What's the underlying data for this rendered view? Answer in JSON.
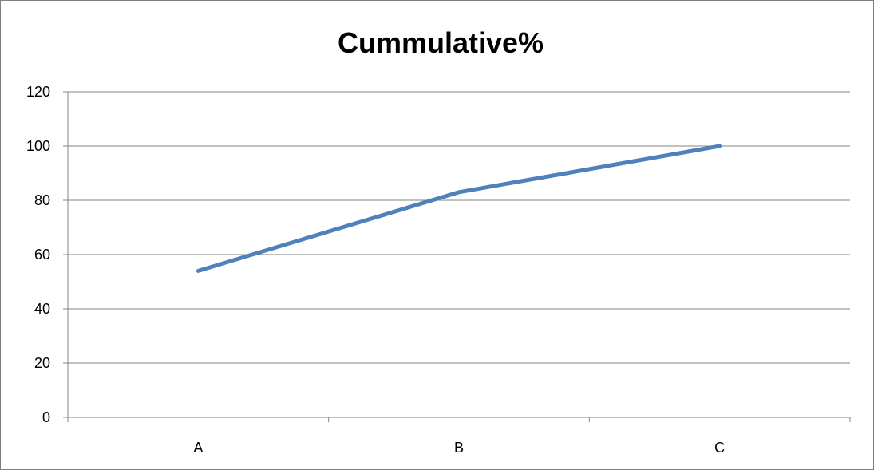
{
  "chart_data": {
    "type": "line",
    "title": "Cummulative%",
    "xlabel": "",
    "ylabel": "",
    "categories": [
      "A",
      "B",
      "C"
    ],
    "series": [
      {
        "values": [
          54,
          83,
          100
        ],
        "color": "#4f81bd"
      }
    ],
    "ylim": [
      0,
      120
    ],
    "y_ticks": [
      0,
      20,
      40,
      60,
      80,
      100,
      120
    ],
    "grid": true,
    "legend": "none"
  }
}
